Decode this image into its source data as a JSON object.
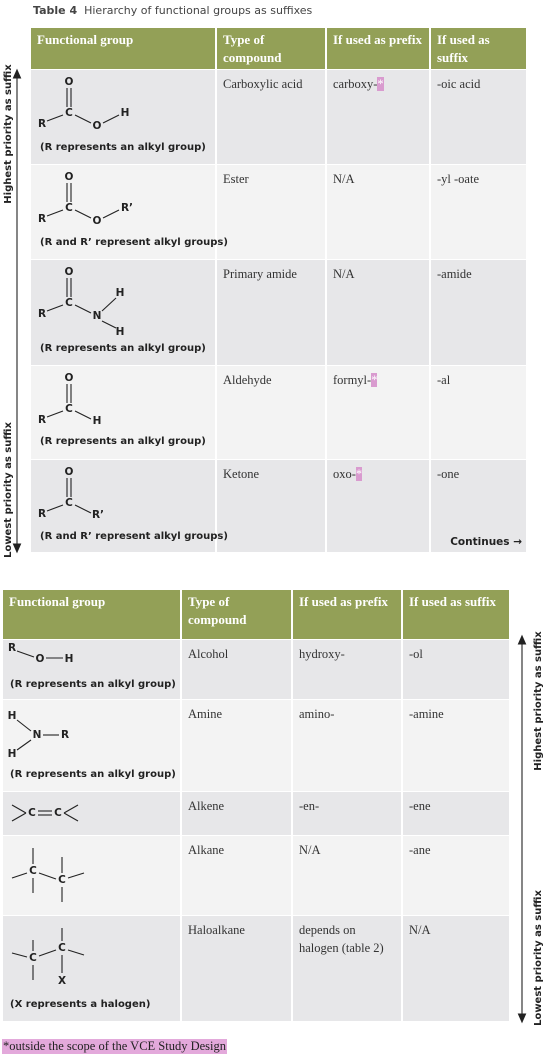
{
  "caption": {
    "label": "Table 4",
    "text": "Hierarchy of functional groups as suffixes"
  },
  "table1": {
    "headers": [
      "Functional group",
      "Type of compound",
      "If used as prefix",
      "If used as suffix"
    ],
    "rows": [
      {
        "atoms": [
          "O",
          "R",
          "C",
          "O",
          "H"
        ],
        "note": "(R represents an alkyl group)",
        "compound": "Carboxylic acid",
        "prefix": "carboxy-",
        "prefix_mark": "*",
        "suffix": "-oic acid"
      },
      {
        "atoms": [
          "O",
          "R",
          "C",
          "O",
          "R’"
        ],
        "note": "(R and R’ represent alkyl groups)",
        "compound": "Ester",
        "prefix": "N/A",
        "suffix": "-yl -oate"
      },
      {
        "atoms": [
          "O",
          "R",
          "C",
          "N",
          "H",
          "H"
        ],
        "note": "(R represents an alkyl group)",
        "compound": "Primary amide",
        "prefix": "N/A",
        "suffix": "-amide"
      },
      {
        "atoms": [
          "O",
          "R",
          "C",
          "H"
        ],
        "note": "(R represents an alkyl group)",
        "compound": "Aldehyde",
        "prefix": "formyl-",
        "prefix_mark": "*",
        "suffix": "-al"
      },
      {
        "atoms": [
          "O",
          "R",
          "C",
          "R’"
        ],
        "note": "(R and R’ represent alkyl groups)",
        "compound": "Ketone",
        "prefix": "oxo-",
        "prefix_mark": "*",
        "suffix": "-one"
      }
    ],
    "continues": "Continues →",
    "arrow_top": "Highest priority as suffix",
    "arrow_bottom": "Lowest priority as suffix"
  },
  "table2": {
    "headers": [
      "Functional group",
      "Type of compound",
      "If used as prefix",
      "If used as suffix"
    ],
    "rows": [
      {
        "atoms": [
          "R",
          "O",
          "H"
        ],
        "note": "(R represents an alkyl group)",
        "compound": "Alcohol",
        "prefix": "hydroxy-",
        "suffix": "-ol"
      },
      {
        "atoms": [
          "H",
          "N",
          "R",
          "H"
        ],
        "note": "(R represents an alkyl group)",
        "compound": "Amine",
        "prefix": "amino-",
        "suffix": "-amine"
      },
      {
        "atoms": [
          "C",
          "C"
        ],
        "compound": "Alkene",
        "prefix": "-en-",
        "suffix": "-ene"
      },
      {
        "atoms": [
          "C",
          "C"
        ],
        "compound": "Alkane",
        "prefix": "N/A",
        "suffix": "-ane"
      },
      {
        "atoms": [
          "C",
          "C",
          "X"
        ],
        "note": "(X represents a halogen)",
        "compound": "Haloalkane",
        "prefix": "depends on halogen (table 2)",
        "suffix": "N/A"
      }
    ],
    "arrow_top": "Highest priority as suffix",
    "arrow_bottom": "Lowest priority as suffix"
  },
  "footnote": "*outside the scope of the VCE Study Design"
}
